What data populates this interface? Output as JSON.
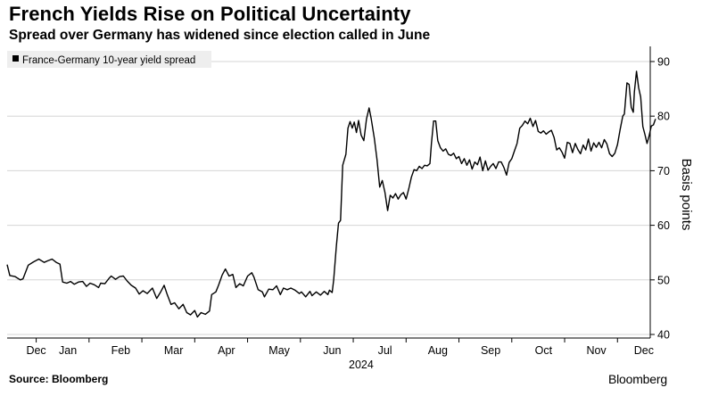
{
  "header": {
    "title": "French Yields Rise on Political Uncertainty",
    "subtitle": "Spread over Germany has widened since election called in June"
  },
  "footer": {
    "source": "Source: Bloomberg",
    "brand": "Bloomberg"
  },
  "colors": {
    "line": "#000000",
    "grid": "#d6d6d6",
    "legend_bg": "#eeeeee"
  },
  "chart_data": {
    "type": "line",
    "title": "French Yields Rise on Political Uncertainty",
    "subtitle": "Spread over Germany has widened since election called in June",
    "xlabel": "2024",
    "ylabel": "Basis points",
    "ylim": [
      40,
      92
    ],
    "y_ticks": [
      40,
      50,
      60,
      70,
      80,
      90
    ],
    "y_tick_labels": [
      "40",
      "50",
      "60",
      "70",
      "80",
      "90"
    ],
    "y_axis_side": "right",
    "grid": "horizontal",
    "x_range": [
      -0.55,
      11.62
    ],
    "x_ticks": [
      0,
      1,
      2,
      3,
      4,
      5,
      6,
      7,
      8,
      9,
      10,
      11
    ],
    "x_tick_labels": [
      "Dec",
      "Jan",
      "Feb",
      "Mar",
      "Apr",
      "May",
      "Jun",
      "Jul",
      "Aug",
      "Sep",
      "Oct",
      "Nov",
      "Dec"
    ],
    "x_tick_label_positions": [
      0,
      0.6,
      1.6,
      2.6,
      3.6,
      4.6,
      5.6,
      6.6,
      7.6,
      8.6,
      9.6,
      10.6,
      11.5
    ],
    "year_label": "2024",
    "year_label_position": 6.15,
    "legend": {
      "position": "top-left"
    },
    "series": [
      {
        "name": "France-Germany 10-year yield spread",
        "points": [
          [
            -0.55,
            52.8
          ],
          [
            -0.5,
            50.8
          ],
          [
            -0.4,
            50.6
          ],
          [
            -0.3,
            50.0
          ],
          [
            -0.25,
            50.2
          ],
          [
            -0.15,
            52.7
          ],
          [
            -0.05,
            53.3
          ],
          [
            0.05,
            53.8
          ],
          [
            0.15,
            53.2
          ],
          [
            0.22,
            53.5
          ],
          [
            0.3,
            53.8
          ],
          [
            0.38,
            53.2
          ],
          [
            0.45,
            52.9
          ],
          [
            0.5,
            49.6
          ],
          [
            0.58,
            49.4
          ],
          [
            0.65,
            49.7
          ],
          [
            0.72,
            49.2
          ],
          [
            0.8,
            49.6
          ],
          [
            0.88,
            49.7
          ],
          [
            0.95,
            48.8
          ],
          [
            1.02,
            49.4
          ],
          [
            1.1,
            49.1
          ],
          [
            1.18,
            48.6
          ],
          [
            1.22,
            49.4
          ],
          [
            1.3,
            49.3
          ],
          [
            1.38,
            50.3
          ],
          [
            1.42,
            50.7
          ],
          [
            1.5,
            50.1
          ],
          [
            1.58,
            50.6
          ],
          [
            1.65,
            50.7
          ],
          [
            1.72,
            49.8
          ],
          [
            1.8,
            49.0
          ],
          [
            1.88,
            48.5
          ],
          [
            1.95,
            47.4
          ],
          [
            2.02,
            48.0
          ],
          [
            2.1,
            47.5
          ],
          [
            2.2,
            48.5
          ],
          [
            2.28,
            46.6
          ],
          [
            2.35,
            47.7
          ],
          [
            2.42,
            49.0
          ],
          [
            2.48,
            47.3
          ],
          [
            2.55,
            45.5
          ],
          [
            2.62,
            45.8
          ],
          [
            2.7,
            44.7
          ],
          [
            2.78,
            45.5
          ],
          [
            2.85,
            44.0
          ],
          [
            2.92,
            43.6
          ],
          [
            3.0,
            44.4
          ],
          [
            3.05,
            43.2
          ],
          [
            3.12,
            44.0
          ],
          [
            3.2,
            43.7
          ],
          [
            3.28,
            44.3
          ],
          [
            3.32,
            47.3
          ],
          [
            3.4,
            47.8
          ],
          [
            3.45,
            49.0
          ],
          [
            3.52,
            50.9
          ],
          [
            3.58,
            52.0
          ],
          [
            3.65,
            50.7
          ],
          [
            3.72,
            51.0
          ],
          [
            3.78,
            48.6
          ],
          [
            3.85,
            49.3
          ],
          [
            3.92,
            48.9
          ],
          [
            4.0,
            50.7
          ],
          [
            4.08,
            51.3
          ],
          [
            4.12,
            50.5
          ],
          [
            4.2,
            48.2
          ],
          [
            4.28,
            47.8
          ],
          [
            4.32,
            46.9
          ],
          [
            4.4,
            48.3
          ],
          [
            4.48,
            48.2
          ],
          [
            4.55,
            48.9
          ],
          [
            4.62,
            47.3
          ],
          [
            4.68,
            48.5
          ],
          [
            4.75,
            48.2
          ],
          [
            4.82,
            48.5
          ],
          [
            4.9,
            48.1
          ],
          [
            4.98,
            47.5
          ],
          [
            5.02,
            47.8
          ],
          [
            5.1,
            46.9
          ],
          [
            5.18,
            47.9
          ],
          [
            5.22,
            47.1
          ],
          [
            5.3,
            47.8
          ],
          [
            5.38,
            47.2
          ],
          [
            5.45,
            47.9
          ],
          [
            5.52,
            47.3
          ],
          [
            5.55,
            48.1
          ],
          [
            5.6,
            47.7
          ],
          [
            5.63,
            50.0
          ],
          [
            5.68,
            56.2
          ],
          [
            5.72,
            60.4
          ],
          [
            5.76,
            60.9
          ],
          [
            5.8,
            71.0
          ],
          [
            5.86,
            73.0
          ],
          [
            5.9,
            77.8
          ],
          [
            5.94,
            79.0
          ],
          [
            5.98,
            77.8
          ],
          [
            6.02,
            78.9
          ],
          [
            6.06,
            77.0
          ],
          [
            6.1,
            79.2
          ],
          [
            6.15,
            76.5
          ],
          [
            6.2,
            75.5
          ],
          [
            6.25,
            79.5
          ],
          [
            6.3,
            81.5
          ],
          [
            6.34,
            79.5
          ],
          [
            6.4,
            75.9
          ],
          [
            6.45,
            72.0
          ],
          [
            6.5,
            67.0
          ],
          [
            6.55,
            68.2
          ],
          [
            6.6,
            66.0
          ],
          [
            6.65,
            62.7
          ],
          [
            6.7,
            65.5
          ],
          [
            6.75,
            65.0
          ],
          [
            6.8,
            65.8
          ],
          [
            6.85,
            64.8
          ],
          [
            6.9,
            65.6
          ],
          [
            6.95,
            66.0
          ],
          [
            7.0,
            64.8
          ],
          [
            7.05,
            66.7
          ],
          [
            7.1,
            68.8
          ],
          [
            7.15,
            70.2
          ],
          [
            7.2,
            70.0
          ],
          [
            7.25,
            70.8
          ],
          [
            7.3,
            70.4
          ],
          [
            7.35,
            71.0
          ],
          [
            7.4,
            70.9
          ],
          [
            7.45,
            71.3
          ],
          [
            7.48,
            75.0
          ],
          [
            7.52,
            79.1
          ],
          [
            7.56,
            79.1
          ],
          [
            7.6,
            75.5
          ],
          [
            7.65,
            74.2
          ],
          [
            7.7,
            73.6
          ],
          [
            7.75,
            74.0
          ],
          [
            7.8,
            73.0
          ],
          [
            7.85,
            72.8
          ],
          [
            7.9,
            73.2
          ],
          [
            7.95,
            72.2
          ],
          [
            8.0,
            72.6
          ],
          [
            8.05,
            71.3
          ],
          [
            8.1,
            72.2
          ],
          [
            8.15,
            71.0
          ],
          [
            8.2,
            72.0
          ],
          [
            8.25,
            70.3
          ],
          [
            8.3,
            71.6
          ],
          [
            8.35,
            71.1
          ],
          [
            8.4,
            72.5
          ],
          [
            8.45,
            70.0
          ],
          [
            8.5,
            71.8
          ],
          [
            8.55,
            70.1
          ],
          [
            8.6,
            70.8
          ],
          [
            8.65,
            71.3
          ],
          [
            8.7,
            70.4
          ],
          [
            8.75,
            71.6
          ],
          [
            8.8,
            71.6
          ],
          [
            8.85,
            70.6
          ],
          [
            8.9,
            69.2
          ],
          [
            8.95,
            71.5
          ],
          [
            9.0,
            72.2
          ],
          [
            9.05,
            73.6
          ],
          [
            9.1,
            75.0
          ],
          [
            9.15,
            77.8
          ],
          [
            9.2,
            78.3
          ],
          [
            9.25,
            79.1
          ],
          [
            9.3,
            78.6
          ],
          [
            9.35,
            79.6
          ],
          [
            9.4,
            78.1
          ],
          [
            9.45,
            79.2
          ],
          [
            9.5,
            77.2
          ],
          [
            9.55,
            76.9
          ],
          [
            9.6,
            77.3
          ],
          [
            9.65,
            76.7
          ],
          [
            9.7,
            77.1
          ],
          [
            9.75,
            77.4
          ],
          [
            9.8,
            76.1
          ],
          [
            9.85,
            73.8
          ],
          [
            9.9,
            74.2
          ],
          [
            9.95,
            73.4
          ],
          [
            10.0,
            72.3
          ],
          [
            10.05,
            75.2
          ],
          [
            10.1,
            75.0
          ],
          [
            10.15,
            73.3
          ],
          [
            10.2,
            75.0
          ],
          [
            10.25,
            73.9
          ],
          [
            10.3,
            73.1
          ],
          [
            10.35,
            74.7
          ],
          [
            10.4,
            73.8
          ],
          [
            10.45,
            75.8
          ],
          [
            10.5,
            73.6
          ],
          [
            10.55,
            75.1
          ],
          [
            10.6,
            74.3
          ],
          [
            10.65,
            75.2
          ],
          [
            10.7,
            74.2
          ],
          [
            10.75,
            75.7
          ],
          [
            10.8,
            74.9
          ],
          [
            10.85,
            73.1
          ],
          [
            10.9,
            72.6
          ],
          [
            10.95,
            73.2
          ],
          [
            11.0,
            74.8
          ],
          [
            11.05,
            77.5
          ],
          [
            11.1,
            80.0
          ],
          [
            11.13,
            80.4
          ],
          [
            11.18,
            86.1
          ],
          [
            11.22,
            85.8
          ],
          [
            11.26,
            81.6
          ],
          [
            11.3,
            80.7
          ],
          [
            11.32,
            84.4
          ],
          [
            11.36,
            88.2
          ],
          [
            11.4,
            85.2
          ],
          [
            11.44,
            83.5
          ],
          [
            11.48,
            78.1
          ],
          [
            11.52,
            76.6
          ],
          [
            11.56,
            75.0
          ],
          [
            11.6,
            76.4
          ],
          [
            11.64,
            78.2
          ],
          [
            11.68,
            78.4
          ],
          [
            11.72,
            79.5
          ]
        ]
      }
    ]
  }
}
